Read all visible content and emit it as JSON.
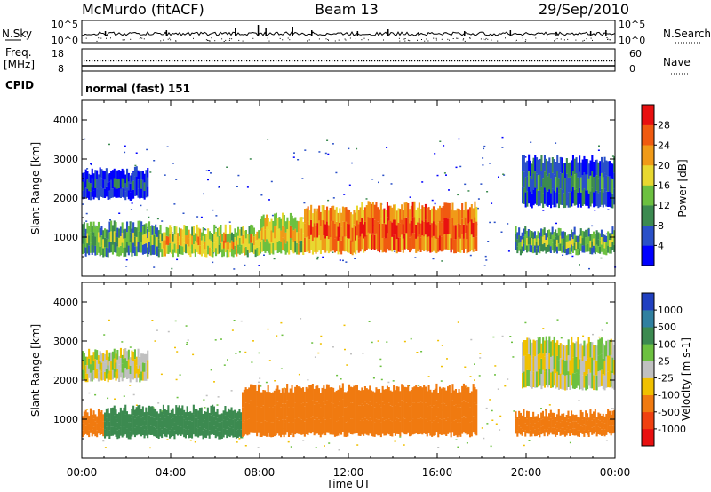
{
  "header": {
    "station": "McMurdo (fitACF)",
    "beam": "Beam 13",
    "date": "29/Sep/2010"
  },
  "top_panels": {
    "nsky_label": "N.Sky",
    "nsearch_label": "N.Search",
    "nsky_ticks": [
      "10^5",
      "10^0"
    ],
    "nsearch_ticks": [
      "10^5",
      "10^0"
    ],
    "freq_label": "Freq.",
    "freq_unit": "[MHz]",
    "freq_ticks": [
      "18",
      "8"
    ],
    "nave_label": "Nave",
    "nave_ticks": [
      "60",
      "0"
    ],
    "cpid_label": "CPID",
    "cpid_value": "normal (fast) 151"
  },
  "chart_data": [
    {
      "type": "heatmap",
      "title": "",
      "xlabel": "Time UT",
      "ylabel": "Slant Range [km]",
      "x_range_hours": [
        0,
        24
      ],
      "x_tick_labels": [
        "00:00",
        "04:00",
        "08:00",
        "12:00",
        "16:00",
        "20:00",
        "00:00"
      ],
      "ylim": [
        0,
        4500
      ],
      "y_ticks": [
        1000,
        2000,
        3000,
        4000
      ],
      "colorbar": {
        "label": "Power [dB]",
        "ticks": [
          4,
          8,
          12,
          16,
          20,
          24,
          28
        ],
        "range": [
          0,
          32
        ],
        "colors": [
          "#0000ff",
          "#2a50c8",
          "#3c8a50",
          "#6cc040",
          "#e8d830",
          "#f09a18",
          "#f05a10",
          "#e81010"
        ]
      },
      "regions": [
        {
          "t0": 0.0,
          "t1": 3.5,
          "r0": 550,
          "r1": 1300,
          "value": 14
        },
        {
          "t0": 3.5,
          "t1": 8.0,
          "r0": 550,
          "r1": 1200,
          "value": 20
        },
        {
          "t0": 8.0,
          "t1": 10.0,
          "r0": 600,
          "r1": 1500,
          "value": 20
        },
        {
          "t0": 10.0,
          "t1": 12.5,
          "r0": 600,
          "r1": 1700,
          "value": 26
        },
        {
          "t0": 12.5,
          "t1": 17.8,
          "r0": 650,
          "r1": 1800,
          "value": 28
        },
        {
          "t0": 19.5,
          "t1": 24.0,
          "r0": 600,
          "r1": 1150,
          "value": 14
        },
        {
          "t0": 0.0,
          "t1": 3.0,
          "r0": 2000,
          "r1": 2700,
          "value": 7
        },
        {
          "t0": 19.8,
          "t1": 24.0,
          "r0": 1800,
          "r1": 3000,
          "value": 9
        }
      ]
    },
    {
      "type": "heatmap",
      "title": "",
      "xlabel": "Time UT",
      "ylabel": "Slant Range [km]",
      "x_range_hours": [
        0,
        24
      ],
      "x_tick_labels": [
        "00:00",
        "04:00",
        "08:00",
        "12:00",
        "16:00",
        "20:00",
        "00:00"
      ],
      "ylim": [
        0,
        4500
      ],
      "y_ticks": [
        1000,
        2000,
        3000,
        4000
      ],
      "colorbar": {
        "label": "Velocity [m s-1]",
        "ticks": [
          1000,
          500,
          100,
          25,
          -25,
          -100,
          -500,
          -1000
        ],
        "colors": [
          "#2040c0",
          "#3080a0",
          "#3c8a50",
          "#6cc040",
          "#c0c0c0",
          "#f0c000",
          "#f07a10",
          "#f04010",
          "#e81010"
        ]
      },
      "regions": [
        {
          "t0": 0.0,
          "t1": 1.0,
          "r0": 600,
          "r1": 1200,
          "value": -300
        },
        {
          "t0": 1.0,
          "t1": 7.2,
          "r0": 550,
          "r1": 1250,
          "value": 300
        },
        {
          "t0": 7.2,
          "t1": 17.8,
          "r0": 600,
          "r1": 1800,
          "value": -300
        },
        {
          "t0": 19.5,
          "t1": 24.0,
          "r0": 600,
          "r1": 1150,
          "value": -300
        },
        {
          "t0": 0.0,
          "t1": 3.0,
          "r0": 2000,
          "r1": 2700,
          "value": 0
        },
        {
          "t0": 19.8,
          "t1": 24.0,
          "r0": 1800,
          "r1": 3000,
          "value": 0
        }
      ]
    }
  ]
}
